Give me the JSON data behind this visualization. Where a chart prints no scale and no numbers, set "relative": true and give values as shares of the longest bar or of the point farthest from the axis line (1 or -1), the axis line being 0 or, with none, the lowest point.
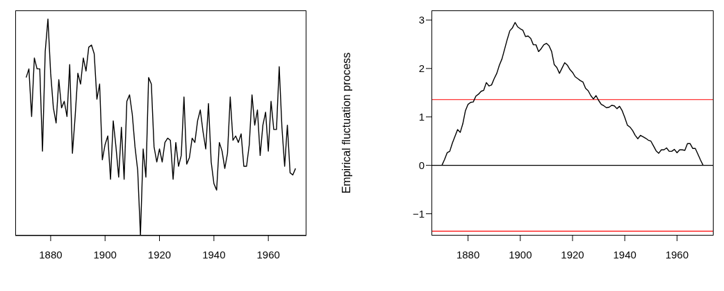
{
  "chart_data": [
    {
      "type": "line",
      "relative": true,
      "color": "#000000",
      "xlim": [
        1867,
        1974
      ],
      "xticks": [
        1880,
        1900,
        1920,
        1940,
        1960
      ],
      "x": [
        1871,
        1872,
        1873,
        1874,
        1875,
        1876,
        1877,
        1878,
        1879,
        1880,
        1881,
        1882,
        1883,
        1884,
        1885,
        1886,
        1887,
        1888,
        1889,
        1890,
        1891,
        1892,
        1893,
        1894,
        1895,
        1896,
        1897,
        1898,
        1899,
        1900,
        1901,
        1902,
        1903,
        1904,
        1905,
        1906,
        1907,
        1908,
        1909,
        1910,
        1911,
        1912,
        1913,
        1914,
        1915,
        1916,
        1917,
        1918,
        1919,
        1920,
        1921,
        1922,
        1923,
        1924,
        1925,
        1926,
        1927,
        1928,
        1929,
        1930,
        1931,
        1932,
        1933,
        1934,
        1935,
        1936,
        1937,
        1938,
        1939,
        1940,
        1941,
        1942,
        1943,
        1944,
        1945,
        1946,
        1947,
        1948,
        1949,
        1950,
        1951,
        1952,
        1953,
        1954,
        1955,
        1956,
        1957,
        1958,
        1959,
        1960,
        1961,
        1962,
        1963,
        1964,
        1965,
        1966,
        1967,
        1968,
        1969,
        1970
      ],
      "values": [
        0.73,
        0.77,
        0.55,
        0.82,
        0.77,
        0.77,
        0.39,
        0.85,
        1,
        0.75,
        0.59,
        0.52,
        0.72,
        0.59,
        0.62,
        0.55,
        0.79,
        0.38,
        0.55,
        0.75,
        0.7,
        0.82,
        0.76,
        0.87,
        0.88,
        0.84,
        0.63,
        0.7,
        0.35,
        0.42,
        0.46,
        0.26,
        0.53,
        0.41,
        0.27,
        0.5,
        0.26,
        0.62,
        0.65,
        0.56,
        0.41,
        0.3,
        0,
        0.4,
        0.27,
        0.73,
        0.7,
        0.41,
        0.34,
        0.4,
        0.34,
        0.43,
        0.45,
        0.44,
        0.26,
        0.43,
        0.32,
        0.37,
        0.64,
        0.33,
        0.36,
        0.45,
        0.43,
        0.53,
        0.58,
        0.48,
        0.4,
        0.61,
        0.34,
        0.24,
        0.21,
        0.43,
        0.39,
        0.31,
        0.38,
        0.64,
        0.44,
        0.46,
        0.43,
        0.47,
        0.32,
        0.32,
        0.42,
        0.65,
        0.51,
        0.58,
        0.37,
        0.51,
        0.57,
        0.39,
        0.62,
        0.49,
        0.49,
        0.78,
        0.5,
        0.32,
        0.51,
        0.29,
        0.28,
        0.31
      ]
    },
    {
      "type": "line",
      "color": "#000000",
      "ylabel": "Empirical fluctuation process",
      "xlim": [
        1866,
        1974
      ],
      "xticks": [
        1880,
        1900,
        1920,
        1940,
        1960
      ],
      "ylim": [
        -1.45,
        3.2
      ],
      "yticks": [
        {
          "value": -1,
          "label": "−1"
        },
        0,
        1,
        2,
        3
      ],
      "ref_lines": [
        {
          "axis": "y",
          "value": 0,
          "color": "#000000"
        },
        {
          "axis": "y",
          "value": 1.358,
          "color": "#ff0000"
        },
        {
          "axis": "y",
          "value": -1.358,
          "color": "#ff0000"
        }
      ],
      "x": [
        1870,
        1871,
        1872,
        1873,
        1874,
        1875,
        1876,
        1877,
        1878,
        1879,
        1880,
        1881,
        1882,
        1883,
        1884,
        1885,
        1886,
        1887,
        1888,
        1889,
        1890,
        1891,
        1892,
        1893,
        1894,
        1895,
        1896,
        1897,
        1898,
        1899,
        1900,
        1901,
        1902,
        1903,
        1904,
        1905,
        1906,
        1907,
        1908,
        1909,
        1910,
        1911,
        1912,
        1913,
        1914,
        1915,
        1916,
        1917,
        1918,
        1919,
        1920,
        1921,
        1922,
        1923,
        1924,
        1925,
        1926,
        1927,
        1928,
        1929,
        1930,
        1931,
        1932,
        1933,
        1934,
        1935,
        1936,
        1937,
        1938,
        1939,
        1940,
        1941,
        1942,
        1943,
        1944,
        1945,
        1946,
        1947,
        1948,
        1949,
        1950,
        1951,
        1952,
        1953,
        1954,
        1955,
        1956,
        1957,
        1958,
        1959,
        1960,
        1961,
        1962,
        1963,
        1964,
        1965,
        1966,
        1967,
        1968,
        1969,
        1970
      ],
      "values": [
        0,
        0.12,
        0.26,
        0.29,
        0.46,
        0.6,
        0.74,
        0.68,
        0.86,
        1.13,
        1.26,
        1.3,
        1.31,
        1.43,
        1.47,
        1.53,
        1.55,
        1.71,
        1.64,
        1.66,
        1.79,
        1.9,
        2.07,
        2.2,
        2.4,
        2.6,
        2.78,
        2.84,
        2.95,
        2.86,
        2.82,
        2.79,
        2.66,
        2.67,
        2.62,
        2.49,
        2.49,
        2.35,
        2.41,
        2.49,
        2.52,
        2.47,
        2.35,
        2.08,
        2.02,
        1.9,
        2.01,
        2.12,
        2.07,
        1.98,
        1.92,
        1.83,
        1.79,
        1.75,
        1.72,
        1.59,
        1.54,
        1.44,
        1.37,
        1.44,
        1.34,
        1.26,
        1.23,
        1.19,
        1.2,
        1.24,
        1.23,
        1.17,
        1.22,
        1.13,
        0.99,
        0.83,
        0.79,
        0.72,
        0.62,
        0.55,
        0.62,
        0.59,
        0.56,
        0.52,
        0.5,
        0.4,
        0.3,
        0.25,
        0.32,
        0.32,
        0.36,
        0.29,
        0.29,
        0.33,
        0.26,
        0.32,
        0.32,
        0.31,
        0.45,
        0.45,
        0.35,
        0.35,
        0.23,
        0.11,
        0
      ]
    }
  ]
}
